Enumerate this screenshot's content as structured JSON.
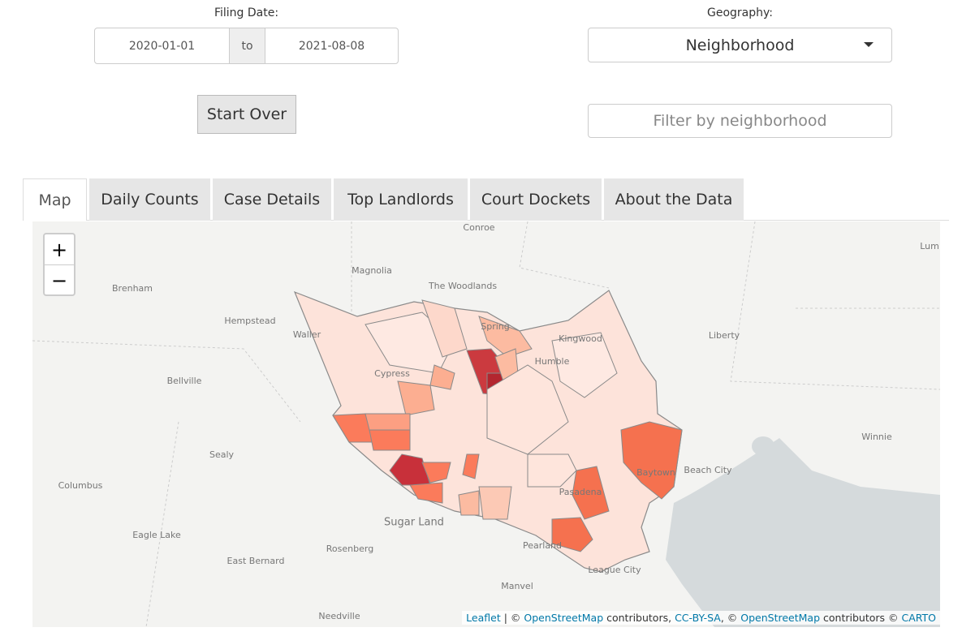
{
  "filters": {
    "filing_date": {
      "label": "Filing Date:",
      "start": "2020-01-01",
      "separator": "to",
      "end": "2021-08-08"
    },
    "geography": {
      "label": "Geography:",
      "selected": "Neighborhood"
    },
    "start_over": "Start Over",
    "filter_placeholder": "Filter by neighborhood"
  },
  "tabs": [
    "Map",
    "Daily Counts",
    "Case Details",
    "Top Landlords",
    "Court Dockets",
    "About the Data"
  ],
  "map": {
    "zoom_in": "+",
    "zoom_out": "−",
    "places": [
      "Conroe",
      "Magnolia",
      "The Woodlands",
      "Brenham",
      "Hempstead",
      "Waller",
      "Spring",
      "Kingwood",
      "Liberty",
      "Lum",
      "Bellville",
      "Cypress",
      "Humble",
      "Sealy",
      "Winnie",
      "Columbus",
      "Beach City",
      "Baytown",
      "Pasadena",
      "Sugar Land",
      "Eagle Lake",
      "Rosenberg",
      "Pearland",
      "East Bernard",
      "League City",
      "Manvel",
      "Needville"
    ],
    "attribution": [
      "Leaflet",
      " | © ",
      "OpenStreetMap",
      " contributors, ",
      "CC-BY-SA",
      ", © ",
      "OpenStreetMap",
      " contributors © ",
      "CARTO"
    ]
  }
}
